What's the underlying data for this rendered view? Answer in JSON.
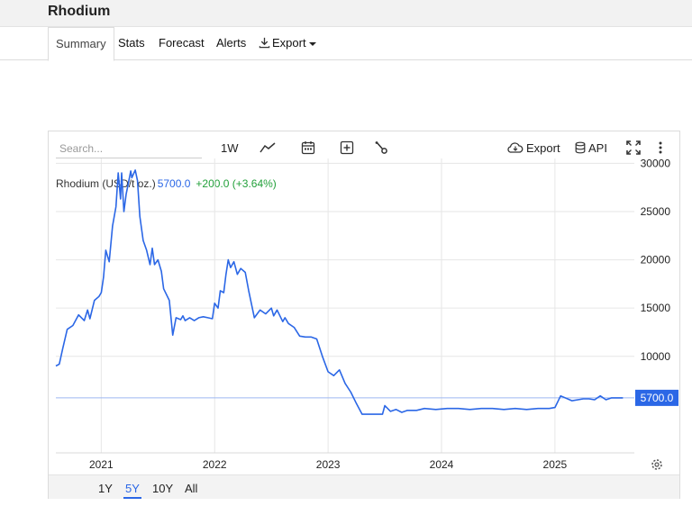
{
  "app": {
    "title": "Rhodium"
  },
  "tabs": [
    {
      "label": "Summary",
      "active": true
    },
    {
      "label": "Stats"
    },
    {
      "label": "Forecast"
    },
    {
      "label": "Alerts"
    },
    {
      "label": "Export",
      "icon": "download-icon"
    }
  ],
  "toolbar": {
    "search_placeholder": "Search...",
    "interval_label": "1W",
    "export_label": "Export",
    "api_label": "API"
  },
  "legend": {
    "name": "Rhodium (USD/t oz.)",
    "price": "5700.0",
    "change": "+200.0 (+3.64%)"
  },
  "ranges": [
    {
      "label": "1Y"
    },
    {
      "label": "5Y",
      "active": true
    },
    {
      "label": "10Y"
    },
    {
      "label": "All"
    }
  ],
  "colors": {
    "line": "#2b67e6",
    "up": "#22a03a",
    "price_tag": "#2b67e6"
  },
  "chart_data": {
    "type": "line",
    "series": [
      {
        "x": [
          2020.6,
          2020.63,
          2020.66,
          2020.7,
          2020.75,
          2020.8,
          2020.85,
          2020.88,
          2020.9,
          2020.94,
          2020.98,
          2021.0,
          2021.02,
          2021.04,
          2021.07,
          2021.1,
          2021.13,
          2021.15,
          2021.17,
          2021.18,
          2021.2,
          2021.22,
          2021.24,
          2021.26,
          2021.27,
          2021.3,
          2021.32,
          2021.34,
          2021.37,
          2021.4,
          2021.43,
          2021.45,
          2021.47,
          2021.5,
          2021.53,
          2021.55,
          2021.6,
          2021.63,
          2021.66,
          2021.7,
          2021.72,
          2021.74,
          2021.78,
          2021.82,
          2021.86,
          2021.9,
          2021.94,
          2021.98,
          2022.0,
          2022.03,
          2022.05,
          2022.08,
          2022.1,
          2022.12,
          2022.14,
          2022.17,
          2022.2,
          2022.23,
          2022.27,
          2022.3,
          2022.35,
          2022.4,
          2022.45,
          2022.5,
          2022.52,
          2022.55,
          2022.6,
          2022.62,
          2022.65,
          2022.7,
          2022.75,
          2022.8,
          2022.85,
          2022.9,
          2022.95,
          2023.0,
          2023.05,
          2023.1,
          2023.15,
          2023.2,
          2023.25,
          2023.3,
          2023.35,
          2023.4,
          2023.45,
          2023.48,
          2023.5,
          2023.55,
          2023.6,
          2023.65,
          2023.7,
          2023.73,
          2023.75,
          2023.78,
          2023.85,
          2023.95,
          2024.05,
          2024.15,
          2024.25,
          2024.35,
          2024.45,
          2024.55,
          2024.65,
          2024.75,
          2024.85,
          2024.95,
          2025.0,
          2025.05,
          2025.15,
          2025.25,
          2025.3,
          2025.35,
          2025.4,
          2025.45,
          2025.5,
          2025.52,
          2025.55,
          2025.6
        ],
        "y": [
          9000,
          9200,
          10800,
          12800,
          13200,
          14300,
          13700,
          14800,
          13900,
          15800,
          16200,
          16600,
          18200,
          21000,
          19800,
          23500,
          25500,
          29000,
          26300,
          29000,
          25000,
          26800,
          28000,
          29200,
          28500,
          29300,
          28200,
          24500,
          22000,
          21000,
          19500,
          21200,
          19500,
          20000,
          18800,
          17000,
          15800,
          12200,
          14000,
          13800,
          14200,
          13700,
          14000,
          13700,
          14000,
          14100,
          14000,
          13900,
          15500,
          15000,
          16800,
          16600,
          18500,
          20000,
          19200,
          19800,
          18500,
          19100,
          18700,
          16800,
          14000,
          14800,
          14400,
          15000,
          14200,
          14800,
          13600,
          14000,
          13400,
          13000,
          12100,
          12000,
          12000,
          11800,
          10000,
          8400,
          8000,
          8600,
          7200,
          6300,
          5100,
          4000,
          4000,
          4000,
          4000,
          4000,
          4900,
          4300,
          4500,
          4200,
          4400,
          4400,
          4400,
          4400,
          4600,
          4500,
          4600,
          4600,
          4500,
          4600,
          4600,
          4500,
          4600,
          4500,
          4600,
          4600,
          4700,
          5900,
          5400,
          5600,
          5600,
          5500,
          5900,
          5500,
          5700,
          5700,
          5700,
          5700
        ],
        "name": "Rhodium (USD/t oz.)"
      }
    ],
    "x_ticks": [
      "2021",
      "2022",
      "2023",
      "2024",
      "2025"
    ],
    "y_ticks": [
      "30000",
      "25000",
      "20000",
      "15000",
      "10000"
    ],
    "last_value": "5700.0",
    "xlim": [
      2020.6,
      2025.7
    ],
    "ylim": [
      0,
      30500
    ],
    "grid": true
  }
}
